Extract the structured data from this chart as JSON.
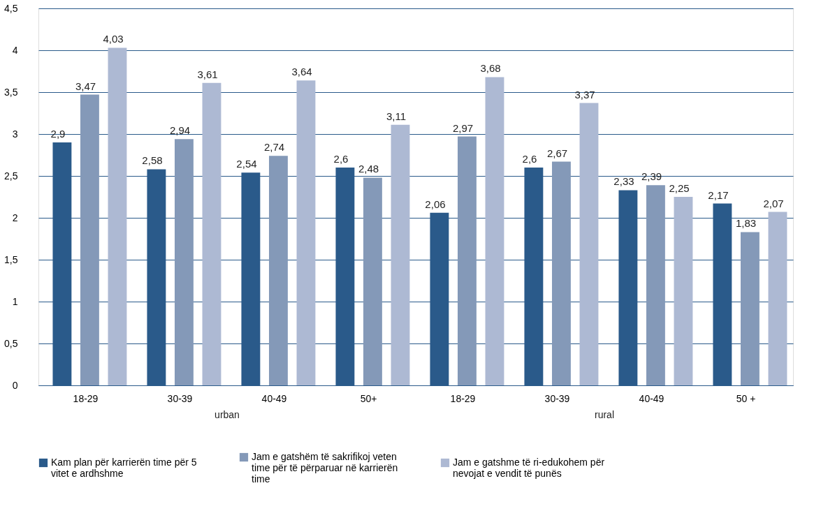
{
  "chart_data": {
    "type": "bar",
    "categories": [
      "18-29",
      "30-39",
      "40-49",
      "50+",
      "18-29",
      "30-39",
      "40-49",
      "50 +"
    ],
    "series": [
      {
        "name": "Kam plan për karrierën time për 5 vitet e ardhshme",
        "color": "#2a5a8a",
        "values": [
          2.9,
          2.58,
          2.54,
          2.6,
          2.06,
          2.6,
          2.33,
          2.17
        ],
        "value_labels": [
          "2,9",
          "2,58",
          "2,54",
          "2,6",
          "2,06",
          "2,6",
          "2,33",
          "2,17"
        ]
      },
      {
        "name": "Jam e gatshëm të sakrifikoj veten time për të përparuar në karrierën time",
        "color": "#8499b8",
        "values": [
          3.47,
          2.94,
          2.74,
          2.48,
          2.97,
          2.67,
          2.39,
          1.83
        ],
        "value_labels": [
          "3,47",
          "2,94",
          "2,74",
          "2,48",
          "2,97",
          "2,67",
          "2,39",
          "1,83"
        ]
      },
      {
        "name": "Jam e gatshme të ri-edukohem për nevojat e vendit të punës",
        "color": "#adb9d3",
        "values": [
          4.03,
          3.61,
          3.64,
          3.11,
          3.68,
          3.37,
          2.25,
          2.07
        ],
        "value_labels": [
          "4,03",
          "3,61",
          "3,64",
          "3,11",
          "3,68",
          "3,37",
          "2,25",
          "2,07"
        ]
      }
    ],
    "annotations": [
      "urban",
      "rural"
    ],
    "ylim": [
      0,
      4.5
    ],
    "yticks": [
      0,
      {
        "value": 0.5,
        "label": "0,5"
      },
      1,
      {
        "value": 1.5,
        "label": "1,5"
      },
      2,
      {
        "value": 2.5,
        "label": "2,5"
      },
      3,
      {
        "value": 3.5,
        "label": "3,5"
      },
      4,
      {
        "value": 4.5,
        "label": "4,5"
      }
    ],
    "grid": "y",
    "legend": "bottom"
  }
}
